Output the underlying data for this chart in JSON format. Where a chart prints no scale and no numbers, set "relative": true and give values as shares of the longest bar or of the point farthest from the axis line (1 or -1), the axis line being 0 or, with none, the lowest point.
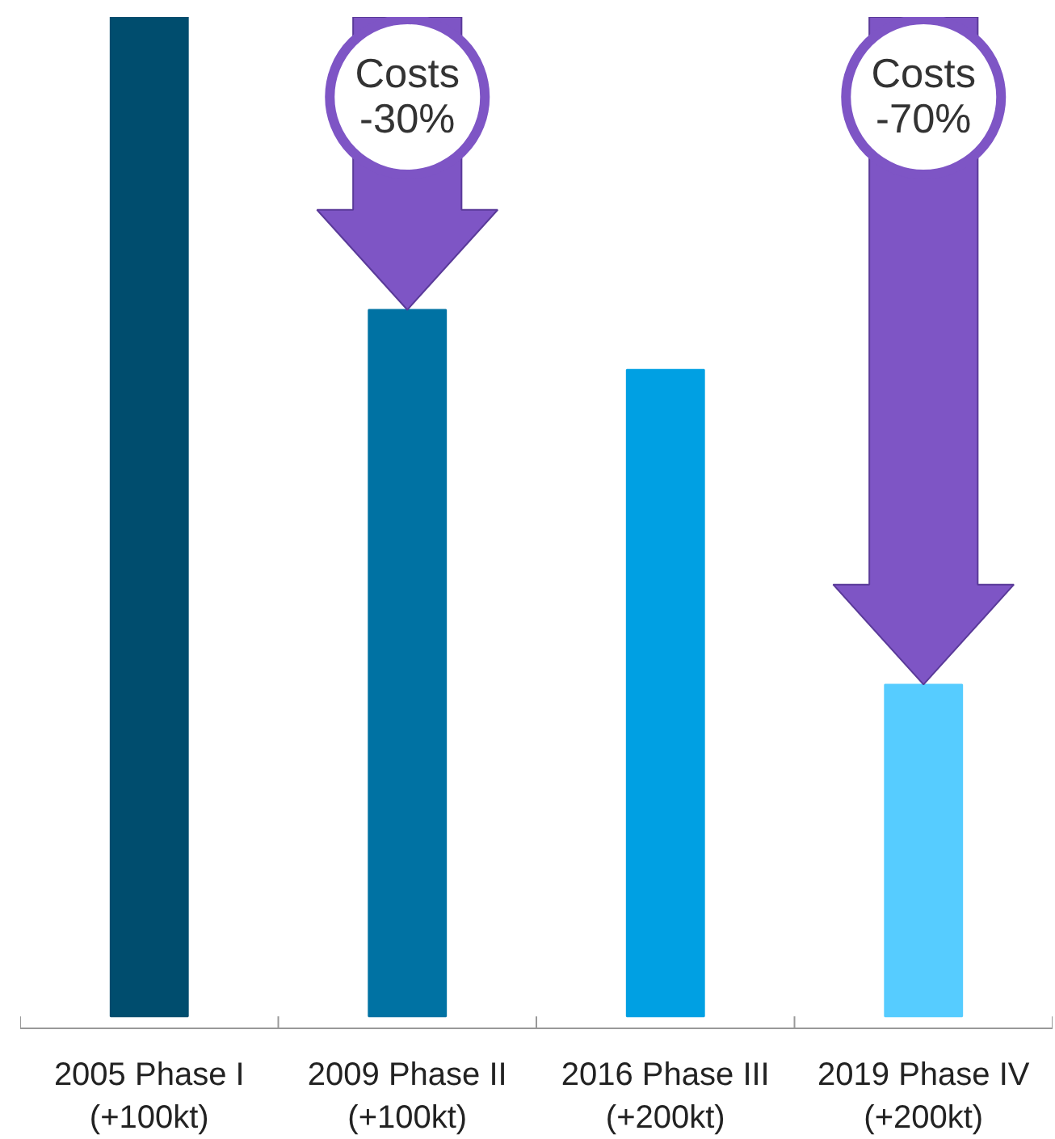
{
  "chart_data": {
    "type": "bar",
    "relative": true,
    "categories": [
      "2005 Phase I\n(+100kt)",
      "2009 Phase II\n(+100kt)",
      "2016 Phase III\n(+200kt)",
      "2019 Phase IV\n(+200kt)"
    ],
    "values": [
      1,
      0.707,
      0.647,
      0.332
    ],
    "colors": [
      "#004d6e",
      "#0072a3",
      "#00a0e3",
      "#56ccff"
    ],
    "annotations": [
      "Costs\n-30%",
      "Costs\n-70%"
    ]
  }
}
